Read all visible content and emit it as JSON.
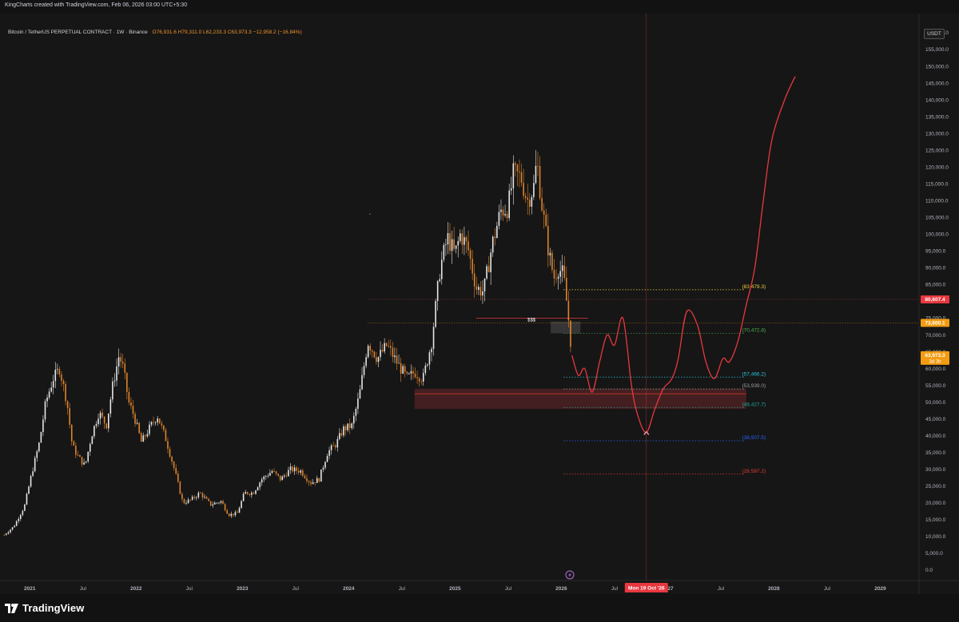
{
  "header": {
    "author_line": "KingCharts created with TradingView.com, Feb 06, 2026 03:00 UTC+5:30"
  },
  "legend": {
    "symbol": "Bitcoin / TetherUS PERPETUAL CONTRACT · 1W · Binance",
    "ohlc": "O76,931.6  H79,311.0  L62,233.3  C63,973.3  −12,958.2 (−16.84%)"
  },
  "unit_badge": "USDT",
  "footer": {
    "brand": "TradingView"
  },
  "colors": {
    "up_candle": "#e8e8e8",
    "down_candle": "#e0842c",
    "projection": "#e8383f",
    "background": "#161616",
    "price_badge_red": "#e8383f",
    "price_badge_orange": "#f39c12"
  },
  "chart_data": {
    "type": "candlestick",
    "title": "",
    "timeframe": "1W",
    "y_axis": {
      "unit": "USDT",
      "range": [
        0,
        160000
      ],
      "ticks": [
        0,
        5000,
        10000,
        15000,
        20000,
        25000,
        30000,
        35000,
        40000,
        45000,
        50000,
        55000,
        60000,
        65000,
        70000,
        75000,
        80000,
        85000,
        90000,
        95000,
        100000,
        105000,
        110000,
        115000,
        120000,
        125000,
        130000,
        135000,
        140000,
        145000,
        150000,
        155000,
        160000
      ],
      "tick_labels": [
        "0.0",
        "5,000.0",
        "10,000.0",
        "15,000.0",
        "20,000.0",
        "25,000.0",
        "30,000.0",
        "35,000.0",
        "40,000.0",
        "45,000.0",
        "50,000.0",
        "55,000.0",
        "60,000.0",
        "65,000.0",
        "70,000.0",
        "75,000.0",
        "80,000.0",
        "85,000.0",
        "90,000.0",
        "95,000.0",
        "100,000.0",
        "105,000.0",
        "110,000.0",
        "115,000.0",
        "120,000.0",
        "125,000.0",
        "130,000.0",
        "135,000.0",
        "140,000.0",
        "145,000.0",
        "150,000.0",
        "155,000.0",
        "160,000.0"
      ]
    },
    "x_axis": {
      "range": [
        "2020-10",
        "2029-05"
      ],
      "ticks": [
        {
          "t": 2021.0,
          "label": "2021"
        },
        {
          "t": 2021.5,
          "label": "Jul"
        },
        {
          "t": 2022.0,
          "label": "2022"
        },
        {
          "t": 2022.5,
          "label": "Jul"
        },
        {
          "t": 2023.0,
          "label": "2023"
        },
        {
          "t": 2023.5,
          "label": "Jul"
        },
        {
          "t": 2024.0,
          "label": "2024"
        },
        {
          "t": 2024.5,
          "label": "Jul"
        },
        {
          "t": 2025.0,
          "label": "2025"
        },
        {
          "t": 2025.5,
          "label": "Jul"
        },
        {
          "t": 2026.0,
          "label": "2026"
        },
        {
          "t": 2026.5,
          "label": "Jul"
        },
        {
          "t": 2027.0,
          "label": "2027"
        },
        {
          "t": 2027.5,
          "label": "Jul"
        },
        {
          "t": 2028.0,
          "label": "2028"
        },
        {
          "t": 2028.5,
          "label": "Jul"
        },
        {
          "t": 2029.0,
          "label": "2029"
        }
      ]
    },
    "price_path": [
      [
        2020.76,
        10500
      ],
      [
        2020.85,
        13000
      ],
      [
        2020.95,
        19000
      ],
      [
        2021.02,
        29000
      ],
      [
        2021.09,
        38000
      ],
      [
        2021.15,
        50000
      ],
      [
        2021.22,
        57000
      ],
      [
        2021.28,
        60000
      ],
      [
        2021.35,
        50000
      ],
      [
        2021.4,
        37000
      ],
      [
        2021.45,
        34000
      ],
      [
        2021.52,
        31000
      ],
      [
        2021.58,
        40000
      ],
      [
        2021.65,
        47000
      ],
      [
        2021.72,
        43000
      ],
      [
        2021.78,
        55000
      ],
      [
        2021.84,
        64000
      ],
      [
        2021.88,
        60000
      ],
      [
        2021.93,
        50000
      ],
      [
        2021.98,
        46000
      ],
      [
        2022.05,
        38000
      ],
      [
        2022.12,
        42000
      ],
      [
        2022.2,
        46000
      ],
      [
        2022.28,
        39000
      ],
      [
        2022.36,
        30000
      ],
      [
        2022.44,
        20000
      ],
      [
        2022.52,
        21000
      ],
      [
        2022.6,
        23000
      ],
      [
        2022.7,
        19500
      ],
      [
        2022.8,
        20500
      ],
      [
        2022.87,
        16500
      ],
      [
        2022.95,
        16800
      ],
      [
        2023.02,
        23000
      ],
      [
        2023.1,
        23000
      ],
      [
        2023.18,
        27000
      ],
      [
        2023.28,
        29500
      ],
      [
        2023.36,
        27000
      ],
      [
        2023.45,
        30000
      ],
      [
        2023.55,
        29500
      ],
      [
        2023.64,
        26000
      ],
      [
        2023.72,
        27000
      ],
      [
        2023.8,
        35000
      ],
      [
        2023.88,
        37500
      ],
      [
        2023.95,
        42000
      ],
      [
        2024.03,
        43000
      ],
      [
        2024.1,
        52000
      ],
      [
        2024.18,
        68000
      ],
      [
        2024.27,
        63000
      ],
      [
        2024.36,
        67000
      ],
      [
        2024.45,
        62000
      ],
      [
        2024.55,
        57000
      ],
      [
        2024.62,
        59000
      ],
      [
        2024.7,
        57000
      ],
      [
        2024.78,
        68000
      ],
      [
        2024.86,
        90000
      ],
      [
        2024.93,
        99000
      ],
      [
        2025.0,
        94000
      ],
      [
        2025.05,
        100000
      ],
      [
        2025.12,
        96000
      ],
      [
        2025.2,
        84000
      ],
      [
        2025.27,
        83000
      ],
      [
        2025.35,
        97000
      ],
      [
        2025.43,
        107000
      ],
      [
        2025.5,
        108000
      ],
      [
        2025.55,
        118000
      ],
      [
        2025.62,
        117000
      ],
      [
        2025.68,
        110000
      ],
      [
        2025.74,
        114000
      ],
      [
        2025.77,
        122000
      ],
      [
        2025.82,
        108000
      ],
      [
        2025.88,
        95000
      ],
      [
        2025.93,
        87000
      ],
      [
        2025.97,
        90000
      ],
      [
        2026.02,
        88000
      ],
      [
        2026.06,
        77000
      ],
      [
        2026.1,
        63973
      ]
    ],
    "projection_path": [
      [
        2026.1,
        63973
      ],
      [
        2026.16,
        58000
      ],
      [
        2026.22,
        60000
      ],
      [
        2026.29,
        53000
      ],
      [
        2026.36,
        62000
      ],
      [
        2026.43,
        70000
      ],
      [
        2026.5,
        67000
      ],
      [
        2026.58,
        75000
      ],
      [
        2026.66,
        55000
      ],
      [
        2026.72,
        46000
      ],
      [
        2026.8,
        41000
      ],
      [
        2026.88,
        48000
      ],
      [
        2026.96,
        54000
      ],
      [
        2027.04,
        57000
      ],
      [
        2027.1,
        63000
      ],
      [
        2027.18,
        77000
      ],
      [
        2027.28,
        73000
      ],
      [
        2027.36,
        62000
      ],
      [
        2027.44,
        57000
      ],
      [
        2027.52,
        63000
      ],
      [
        2027.58,
        62000
      ],
      [
        2027.66,
        68000
      ],
      [
        2027.74,
        79000
      ],
      [
        2027.82,
        90000
      ],
      [
        2027.9,
        110000
      ],
      [
        2027.98,
        128000
      ],
      [
        2028.1,
        140000
      ],
      [
        2028.2,
        147000
      ]
    ],
    "levels": [
      {
        "value": 83479.3,
        "label": "(83,479.3)",
        "color": "#f1d03a"
      },
      {
        "value": 70472.8,
        "label": "(70,472.8)",
        "color": "#4caf50"
      },
      {
        "value": 57466.2,
        "label": "(57,466.2)",
        "color": "#26c6da"
      },
      {
        "value": 53939.0,
        "label": "(53,939.0)",
        "color": "#9e9e9e"
      },
      {
        "value": 48427.7,
        "label": "(48,427.7)",
        "color": "#26a69a"
      },
      {
        "value": 38507.5,
        "label": "(38,507.5)",
        "color": "#2962ff"
      },
      {
        "value": 28587.2,
        "label": "(28,587.2)",
        "color": "#e53935"
      }
    ],
    "annotations": {
      "liquidity_marker": "$$$",
      "cursor_date": "Mon 19 Oct '26",
      "zones": [
        {
          "from": 2024.62,
          "to": 2027.74,
          "low": 48000,
          "high": 54000,
          "type": "demand"
        },
        {
          "from": 2025.9,
          "to": 2026.18,
          "low": 70500,
          "high": 74000,
          "type": "neutral"
        }
      ]
    },
    "price_badges": [
      {
        "value": 80607.4,
        "label": "80,607.4",
        "color": "#e8383f"
      },
      {
        "value": 73600.1,
        "label": "73,600.1",
        "color": "#f39c12"
      },
      {
        "value": 63973.3,
        "label": "63,973.3",
        "sublabel": "3d 3h",
        "color": "#f39c12"
      }
    ]
  }
}
